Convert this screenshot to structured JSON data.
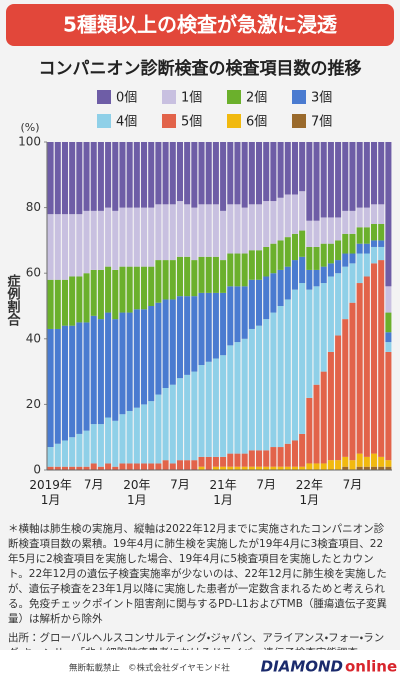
{
  "header": {
    "headline": "5種類以上の検査が急激に浸透"
  },
  "chart_data": {
    "type": "bar",
    "stacked": true,
    "title": "コンパニオン診断検査の検査項目数の推移",
    "y_label": "症例割合",
    "y_unit": "(%)",
    "categories": [
      "2019年1月",
      null,
      null,
      null,
      null,
      null,
      "7月",
      null,
      null,
      null,
      null,
      null,
      "20年1月",
      null,
      null,
      null,
      null,
      null,
      "7月",
      null,
      null,
      null,
      null,
      null,
      "21年1月",
      null,
      null,
      null,
      null,
      null,
      "7月",
      null,
      null,
      null,
      null,
      null,
      "22年1月",
      null,
      null,
      null,
      null,
      null,
      "7月",
      null,
      null,
      null,
      null,
      null
    ],
    "series": [
      {
        "name": "0個",
        "color": "#6e5da6",
        "values": [
          22,
          22,
          22,
          22,
          22,
          21,
          21,
          21,
          20,
          21,
          20,
          20,
          20,
          20,
          20,
          19,
          19,
          19,
          18,
          19,
          20,
          19,
          19,
          19,
          21,
          19,
          19,
          20,
          19,
          19,
          18,
          18,
          17,
          16,
          16,
          15,
          24,
          24,
          23,
          23,
          23,
          21,
          21,
          20,
          20,
          19,
          19,
          44
        ]
      },
      {
        "name": "1個",
        "color": "#c8c0e0",
        "values": [
          20,
          20,
          20,
          19,
          19,
          19,
          18,
          18,
          18,
          18,
          18,
          18,
          18,
          18,
          18,
          17,
          17,
          17,
          17,
          16,
          16,
          16,
          16,
          16,
          15,
          15,
          15,
          14,
          14,
          14,
          14,
          13,
          13,
          13,
          12,
          12,
          8,
          8,
          8,
          8,
          7,
          7,
          7,
          6,
          6,
          6,
          6,
          8
        ]
      },
      {
        "name": "2個",
        "color": "#6bb02c",
        "values": [
          15,
          15,
          14,
          15,
          14,
          15,
          14,
          15,
          14,
          15,
          14,
          14,
          13,
          13,
          12,
          13,
          12,
          12,
          12,
          12,
          11,
          11,
          11,
          11,
          10,
          10,
          10,
          10,
          9,
          9,
          9,
          9,
          9,
          9,
          8,
          8,
          7,
          7,
          7,
          6,
          6,
          6,
          6,
          5,
          5,
          5,
          5,
          6
        ]
      },
      {
        "name": "3個",
        "color": "#4a7bd0",
        "values": [
          36,
          35,
          35,
          34,
          34,
          33,
          33,
          32,
          32,
          31,
          31,
          30,
          30,
          29,
          29,
          28,
          27,
          26,
          25,
          24,
          23,
          22,
          21,
          20,
          19,
          18,
          17,
          16,
          15,
          14,
          13,
          12,
          11,
          10,
          9,
          8,
          6,
          5,
          5,
          4,
          4,
          4,
          3,
          3,
          3,
          2,
          2,
          3
        ]
      },
      {
        "name": "4個",
        "color": "#8fd0e8",
        "values": [
          6,
          7,
          8,
          9,
          10,
          11,
          12,
          13,
          14,
          14,
          15,
          16,
          17,
          18,
          19,
          21,
          22,
          24,
          25,
          26,
          27,
          28,
          29,
          30,
          31,
          33,
          34,
          35,
          37,
          38,
          40,
          41,
          43,
          44,
          46,
          46,
          33,
          30,
          27,
          23,
          19,
          16,
          12,
          9,
          7,
          5,
          4,
          3
        ]
      },
      {
        "name": "5個",
        "color": "#e2634a",
        "values": [
          1,
          1,
          1,
          1,
          1,
          1,
          2,
          1,
          2,
          1,
          2,
          2,
          2,
          2,
          2,
          2,
          3,
          2,
          3,
          3,
          3,
          3,
          4,
          3,
          3,
          4,
          4,
          4,
          5,
          5,
          5,
          6,
          6,
          7,
          8,
          10,
          20,
          24,
          28,
          33,
          38,
          42,
          48,
          52,
          55,
          58,
          60,
          33
        ]
      },
      {
        "name": "6個",
        "color": "#f1b90f",
        "values": [
          0,
          0,
          0,
          0,
          0,
          0,
          0,
          0,
          0,
          0,
          0,
          0,
          0,
          0,
          0,
          0,
          0,
          0,
          0,
          0,
          0,
          1,
          0,
          1,
          1,
          1,
          1,
          1,
          1,
          1,
          1,
          1,
          1,
          1,
          1,
          1,
          2,
          2,
          2,
          3,
          3,
          3,
          3,
          4,
          3,
          4,
          3,
          2
        ]
      },
      {
        "name": "7個",
        "color": "#9a6a2c",
        "values": [
          0,
          0,
          0,
          0,
          0,
          0,
          0,
          0,
          0,
          0,
          0,
          0,
          0,
          0,
          0,
          0,
          0,
          0,
          0,
          0,
          0,
          0,
          0,
          0,
          0,
          0,
          0,
          0,
          0,
          0,
          0,
          0,
          0,
          0,
          0,
          0,
          0,
          0,
          0,
          0,
          0,
          1,
          0,
          1,
          1,
          1,
          1,
          1
        ]
      }
    ],
    "ylim": [
      0,
      100
    ],
    "yticks": [
      0,
      20,
      40,
      60,
      80,
      100
    ],
    "grid": false
  },
  "notes": {
    "footnote": "＊横軸は肺生検の実施月、縦軸は2022年12月までに実施されたコンパニオン診断検査項目数の累積。19年4月に肺生検を実施したが19年4月に3検査項目、22年5月に2検査項目を実施した場合、19年4月に5検査項目を実施したとカウント。22年12月の遺伝子検査実施率が少ないのは、22年12月に肺生検を実施したが、遺伝子検査を23年1月以降に実施した患者が一定数含まれるためと考えられる。免疫チェックポイント阻害剤に関与するPD-L1およびTMB（腫瘍遺伝子変異量）は解析から除外",
    "source": "出所：グローバルヘルスコンサルティング・ジャパン、アライアンス・フォー・ラング・キャンサー「非小細胞肺癌患者におけるドライバー遺伝子検査実態調査」"
  },
  "footer": {
    "rights": "無断転載禁止",
    "copyright": "©株式会社ダイヤモンド社",
    "brand": "DIAMOND",
    "brand_suffix": "online"
  }
}
